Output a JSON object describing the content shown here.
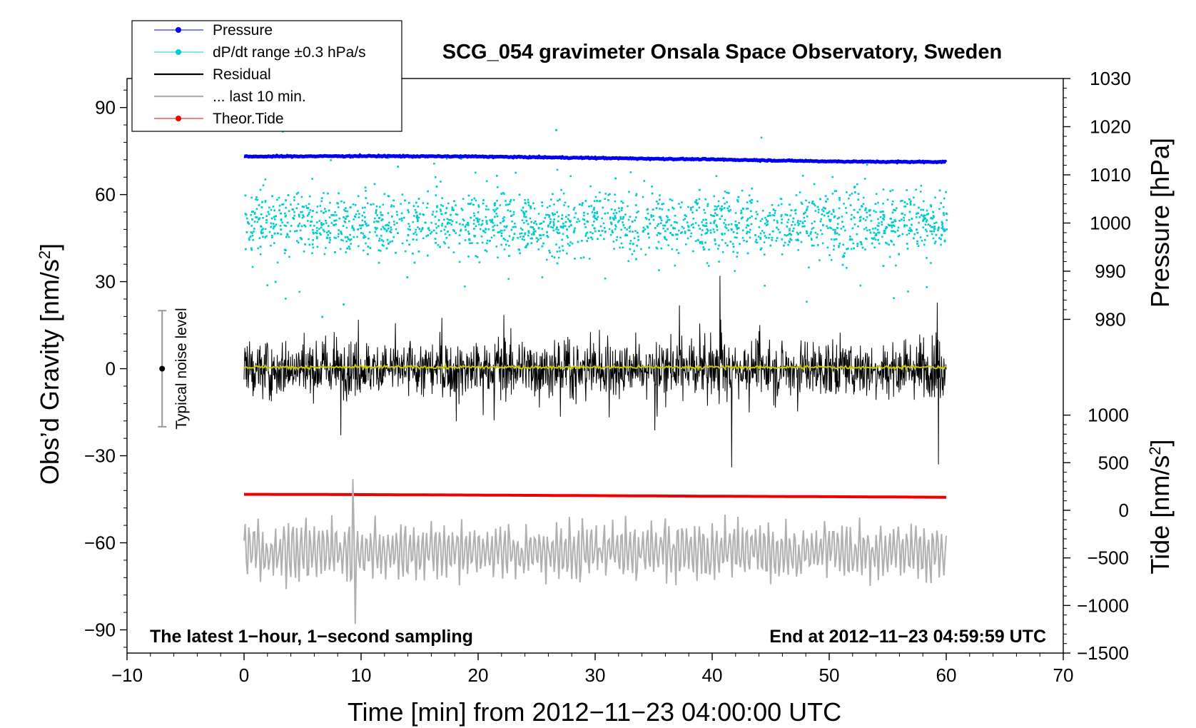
{
  "chart_data": {
    "type": "line",
    "title": "SCG_054 gravimeter Onsala Space Observatory, Sweden",
    "xlabel": "Time [min] from 2012−11−23 04:00:00 UTC",
    "ylabel": "Obs’d Gravity [nm/s",
    "ylabel_sup": "2",
    "ylabel_tail": "]",
    "pressure_label": "Pressure [hPa]",
    "tide_label": "Tide [nm/s",
    "tide_label_sup": "2",
    "tide_label_tail": "]",
    "xlim": [
      -10,
      70
    ],
    "ylim": [
      -98,
      100
    ],
    "xticks": [
      -10,
      0,
      10,
      20,
      30,
      40,
      50,
      60,
      70
    ],
    "xtick_labels": [
      "−10",
      "0",
      "10",
      "20",
      "30",
      "40",
      "50",
      "60",
      "70"
    ],
    "yticks": [
      90,
      60,
      30,
      0,
      -30,
      -60,
      -90
    ],
    "ytick_labels": [
      "90",
      "60",
      "30",
      "0",
      "−30",
      "−60",
      "−90"
    ],
    "pressure_axis": {
      "range": [
        980,
        1030
      ],
      "gravity_at_980": 17,
      "gravity_at_1030": 100,
      "ticks": [
        980,
        990,
        1000,
        1010,
        1020,
        1030
      ],
      "tick_labels": [
        "980",
        "990",
        "1000",
        "1010",
        "1020",
        "1030"
      ]
    },
    "tide_axis": {
      "range": [
        -1500,
        1000
      ],
      "gravity_at_-1500": -98,
      "gravity_at_1000": -16,
      "ticks": [
        1000,
        500,
        0,
        -500,
        -1000,
        -1500
      ],
      "tick_labels": [
        "1000",
        "500",
        "0",
        "−500",
        "−1000",
        "−1500"
      ]
    },
    "legend": {
      "position": "top-left",
      "entries": [
        {
          "label": "Pressure",
          "color": "#0000ee",
          "style": "line-dot"
        },
        {
          "label": "dP/dt range ±0.3 hPa/s",
          "color": "#00cccc",
          "style": "line-dot"
        },
        {
          "label": "Residual",
          "color": "#000000",
          "style": "line"
        },
        {
          "label": "... last 10 min.",
          "color": "#b0b0b0",
          "style": "line"
        },
        {
          "label": "Theor.Tide",
          "color": "#ee0000",
          "style": "line-dot"
        }
      ]
    },
    "noise_bar": {
      "label": "Typical noise level",
      "x": -7,
      "center": 0,
      "low": -20,
      "high": 20
    },
    "annotations": {
      "left": "The latest 1−hour, 1−second sampling",
      "right": "End at 2012−11−23 04:59:59 UTC"
    },
    "series": [
      {
        "name": "Pressure",
        "unit": "hPa",
        "color": "#0000ee",
        "x": [
          0,
          10,
          20,
          30,
          40,
          50,
          55,
          60
        ],
        "values": [
          1013.8,
          1013.9,
          1013.8,
          1013.5,
          1013.2,
          1012.8,
          1012.7,
          1012.7
        ]
      },
      {
        "name": "Theor.Tide",
        "unit": "nm/s2",
        "color": "#ee0000",
        "x": [
          0,
          10,
          20,
          30,
          40,
          50,
          60
        ],
        "values": [
          168,
          165,
          160,
          154,
          148,
          143,
          137
        ]
      },
      {
        "name": "Residual",
        "unit": "nm/s2",
        "color": "#000000",
        "x_range": [
          0,
          60
        ],
        "baseline": 0,
        "typical_amplitude": 12,
        "peak_values": {
          "max": 32,
          "min": -34
        }
      },
      {
        "name": "Residual smoothed",
        "unit": "nm/s2",
        "color": "#c8c800",
        "x_range": [
          0,
          60
        ],
        "values_approx": 0.5
      },
      {
        "name": "... last 10 min.",
        "unit": "nm/s2",
        "color": "#b0b0b0",
        "x_range": [
          0,
          60
        ],
        "baseline": -63,
        "typical_amplitude": 8,
        "peak_values": {
          "max": -38,
          "min": -88
        }
      },
      {
        "name": "dP/dt range ±0.3 hPa/s",
        "unit": "hPa",
        "color": "#00cccc",
        "x_range": [
          0,
          60
        ],
        "center": 50,
        "range": [
          16,
          100
        ]
      }
    ]
  }
}
